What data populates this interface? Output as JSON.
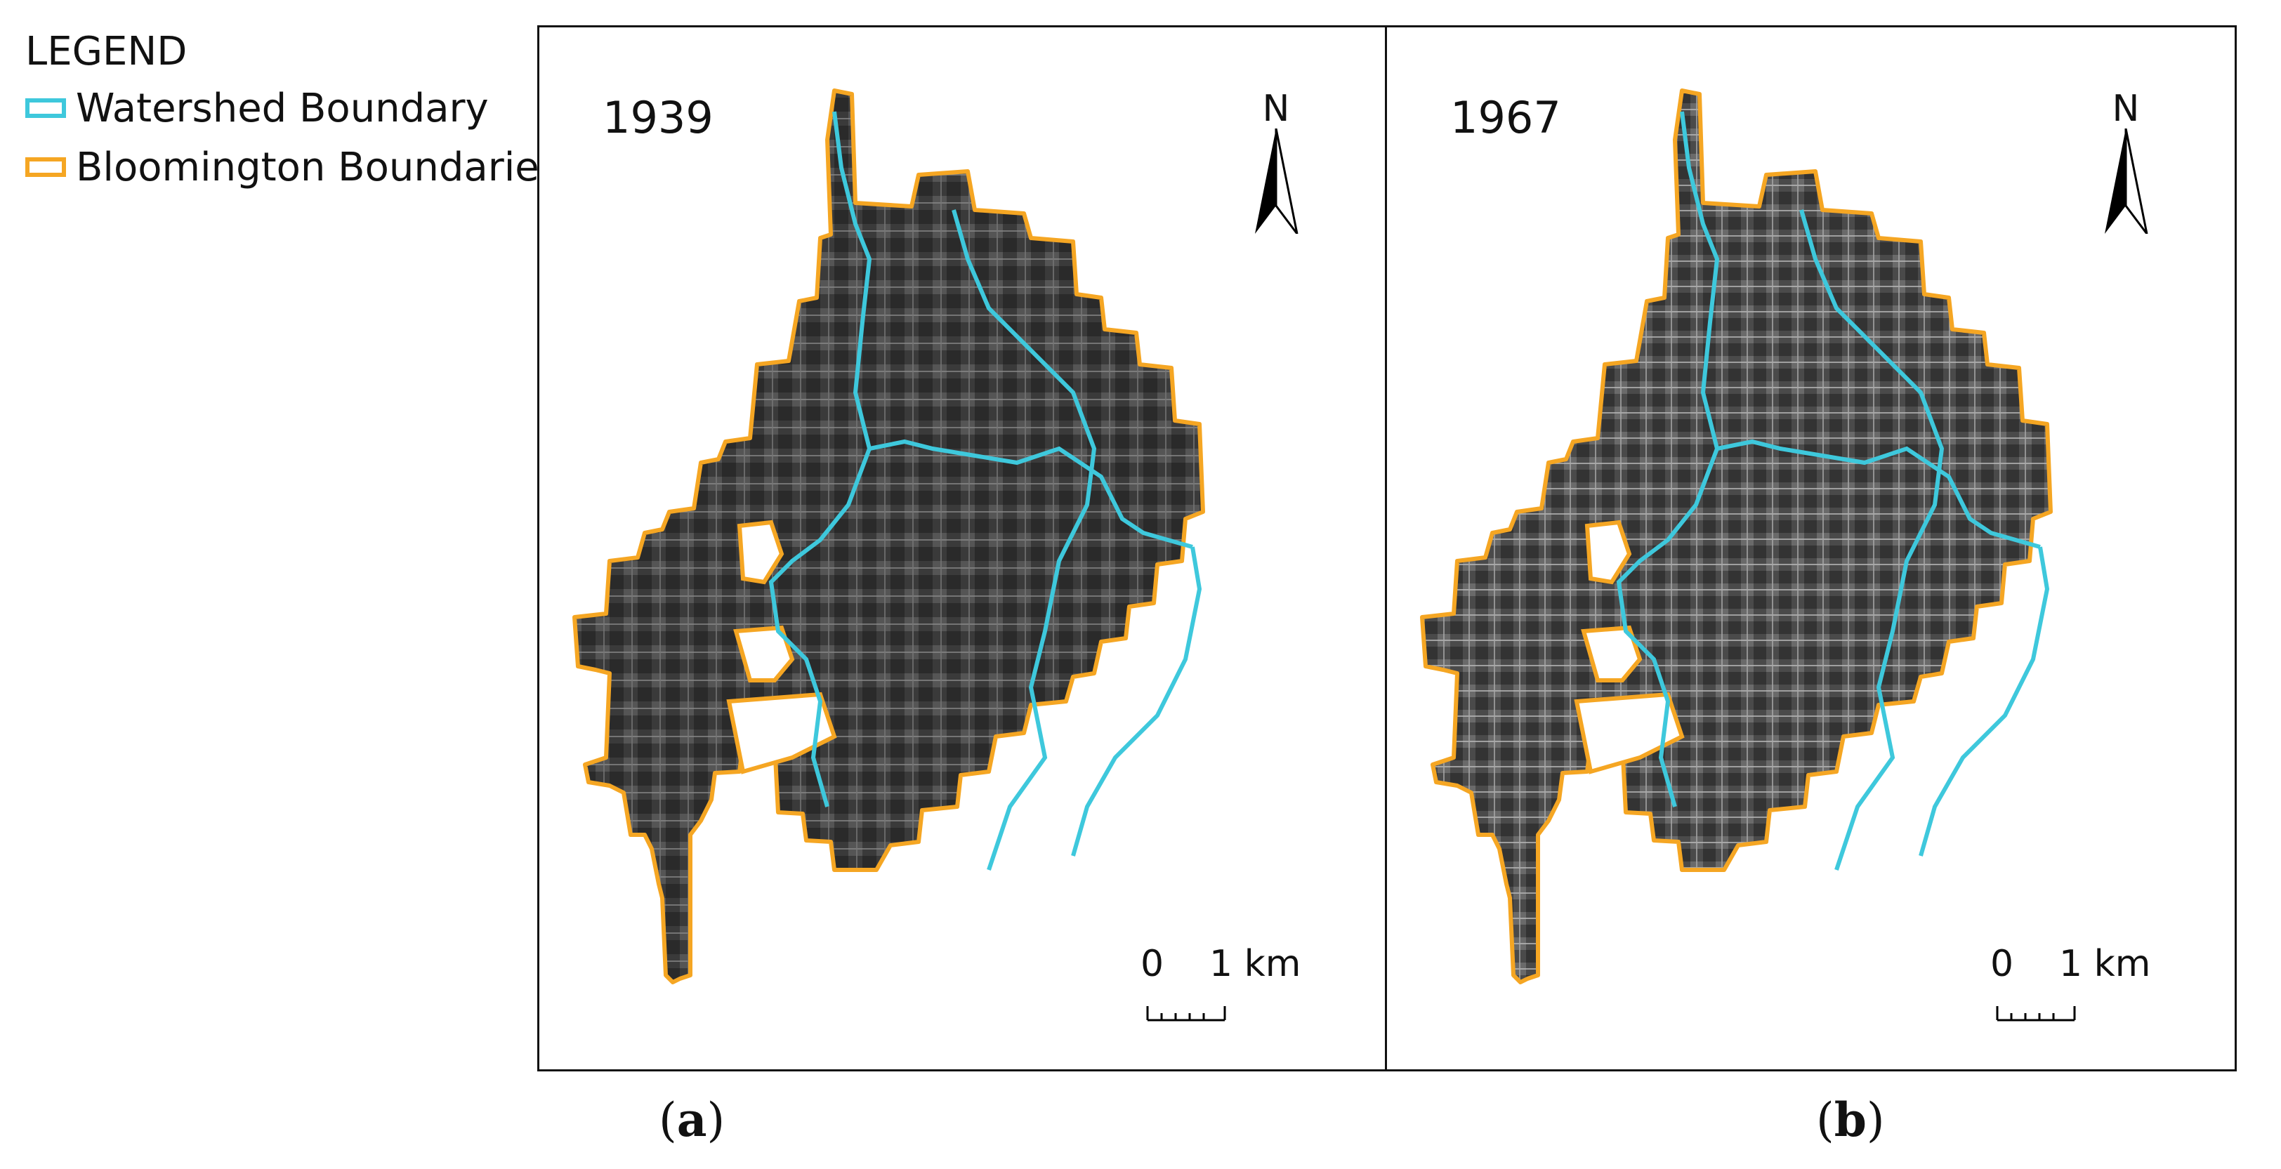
{
  "legend": {
    "title": "LEGEND",
    "items": [
      {
        "label": "Watershed Boundary",
        "color": "#3ec8dc"
      },
      {
        "label": "Bloomington Boundaries",
        "color": "#f5a623"
      }
    ]
  },
  "panels": [
    {
      "year": "1939",
      "label_open": "(",
      "label_letter": "a",
      "label_close": ")",
      "imagery_tone": "#3a3a3a"
    },
    {
      "year": "1967",
      "label_open": "(",
      "label_letter": "b",
      "label_close": ")",
      "imagery_tone": "#4a4a4a"
    }
  ],
  "north_arrow": {
    "letter": "N"
  },
  "scale_bar": {
    "start": "0",
    "end": "1 km"
  },
  "colors": {
    "watershed": "#3ec8dc",
    "city_boundary": "#f5a623",
    "frame": "#111111"
  }
}
